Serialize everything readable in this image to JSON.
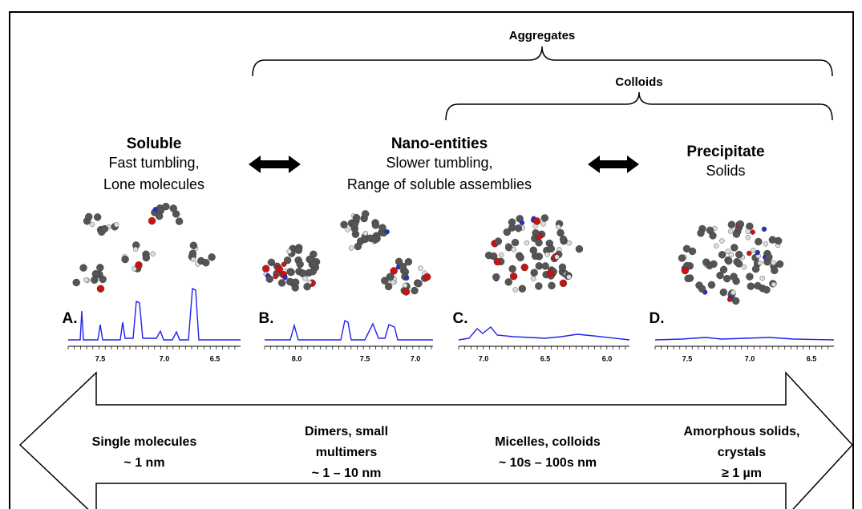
{
  "brackets": [
    {
      "label": "Aggregates"
    },
    {
      "label": "Colloids"
    }
  ],
  "states": [
    {
      "title": "Soluble",
      "lines": [
        "Fast tumbling,",
        "Lone molecules"
      ]
    },
    {
      "title": "Nano-entities",
      "lines": [
        "Slower tumbling,",
        "Range of soluble assemblies"
      ]
    },
    {
      "title": "Precipitate",
      "lines": [
        "Solids"
      ]
    }
  ],
  "spectra": [
    {
      "label": "A.",
      "ticks": [
        "7.5",
        "7.0",
        "6.5"
      ]
    },
    {
      "label": "B.",
      "ticks": [
        "8.0",
        "7.5",
        "7.0"
      ]
    },
    {
      "label": "C.",
      "ticks": [
        "7.0",
        "6.5",
        "6.0"
      ]
    },
    {
      "label": "D.",
      "ticks": [
        "7.5",
        "7.0",
        "6.5"
      ]
    }
  ],
  "sizes": [
    {
      "lines": [
        "Single molecules",
        "~ 1 nm"
      ]
    },
    {
      "lines": [
        "Dimers, small",
        "multimers",
        "~ 1 – 10 nm"
      ]
    },
    {
      "lines": [
        "Micelles, colloids",
        "~ 10s – 100s nm"
      ]
    },
    {
      "lines": [
        "Amorphous solids,",
        "crystals",
        "≥ 1 µm"
      ]
    }
  ]
}
